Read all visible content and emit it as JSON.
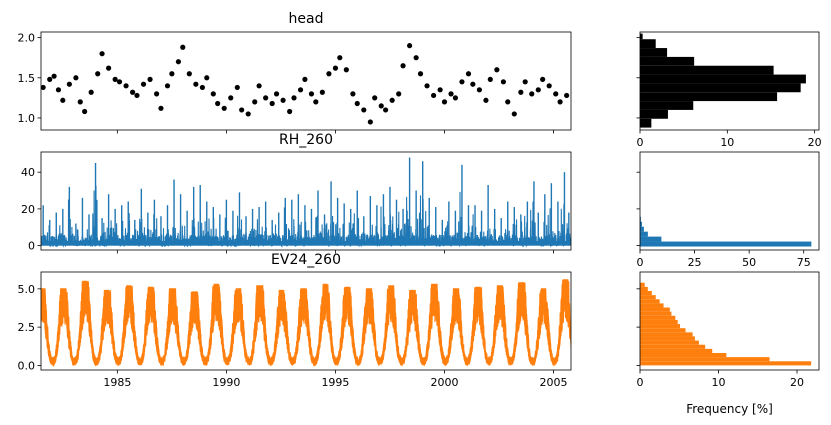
{
  "chart_data": [
    {
      "id": "head",
      "type": "scatter",
      "title": "head",
      "xlabel": "",
      "ylabel": "",
      "xlim": [
        1981.5,
        2005.8
      ],
      "ylim": [
        0.85,
        2.07
      ],
      "yticks": [
        1.0,
        1.5,
        2.0
      ],
      "yticklabels": [
        "1.0",
        "1.5",
        "2.0"
      ],
      "color": "#000000",
      "x": [
        1981.6,
        1981.9,
        1982.1,
        1982.3,
        1982.5,
        1982.8,
        1983.1,
        1983.3,
        1983.5,
        1983.8,
        1984.1,
        1984.3,
        1984.6,
        1984.9,
        1985.1,
        1985.4,
        1985.7,
        1985.9,
        1986.2,
        1986.5,
        1986.8,
        1987.0,
        1987.3,
        1987.5,
        1987.8,
        1988.0,
        1988.3,
        1988.6,
        1988.9,
        1989.1,
        1989.4,
        1989.6,
        1989.9,
        1990.2,
        1990.5,
        1990.7,
        1991.0,
        1991.3,
        1991.5,
        1991.8,
        1992.1,
        1992.3,
        1992.6,
        1992.9,
        1993.1,
        1993.4,
        1993.6,
        1993.9,
        1994.1,
        1994.4,
        1994.7,
        1995.0,
        1995.2,
        1995.5,
        1995.8,
        1996.0,
        1996.3,
        1996.6,
        1996.8,
        1997.1,
        1997.3,
        1997.6,
        1997.9,
        1998.1,
        1998.4,
        1998.7,
        1998.9,
        1999.2,
        1999.5,
        1999.8,
        2000.0,
        2000.3,
        2000.5,
        2000.8,
        2001.1,
        2001.3,
        2001.6,
        2001.9,
        2002.1,
        2002.4,
        2002.7,
        2002.9,
        2003.2,
        2003.5,
        2003.7,
        2004.0,
        2004.3,
        2004.5,
        2004.8,
        2005.1,
        2005.3,
        2005.6
      ],
      "y": [
        1.38,
        1.48,
        1.52,
        1.35,
        1.22,
        1.42,
        1.5,
        1.2,
        1.08,
        1.32,
        1.55,
        1.8,
        1.62,
        1.48,
        1.45,
        1.4,
        1.32,
        1.28,
        1.42,
        1.48,
        1.3,
        1.12,
        1.4,
        1.55,
        1.7,
        1.88,
        1.55,
        1.42,
        1.38,
        1.5,
        1.3,
        1.18,
        1.12,
        1.25,
        1.38,
        1.1,
        1.05,
        1.2,
        1.4,
        1.25,
        1.18,
        1.3,
        1.22,
        1.08,
        1.25,
        1.35,
        1.48,
        1.3,
        1.2,
        1.32,
        1.55,
        1.62,
        1.75,
        1.6,
        1.3,
        1.18,
        1.1,
        0.95,
        1.25,
        1.15,
        1.1,
        1.22,
        1.3,
        1.65,
        1.9,
        1.75,
        1.55,
        1.4,
        1.28,
        1.35,
        1.2,
        1.3,
        1.25,
        1.45,
        1.55,
        1.42,
        1.35,
        1.22,
        1.48,
        1.6,
        1.45,
        1.2,
        1.05,
        1.32,
        1.45,
        1.3,
        1.35,
        1.48,
        1.4,
        1.3,
        1.2,
        1.28
      ]
    },
    {
      "id": "head-hist",
      "type": "bar",
      "orientation": "horizontal",
      "title": "",
      "xlabel": "",
      "ylabel": "",
      "xlim": [
        0,
        20.5
      ],
      "ylim": [
        0.85,
        2.07
      ],
      "xticks": [
        0,
        10,
        20
      ],
      "xticklabels": [
        "0",
        "10",
        "20"
      ],
      "color": "#000000",
      "bin_edges": [
        0.88,
        0.99,
        1.1,
        1.21,
        1.32,
        1.43,
        1.54,
        1.65,
        1.76,
        1.87,
        1.98,
        2.05
      ],
      "values": [
        1.3,
        3.2,
        6.1,
        15.7,
        18.4,
        19.0,
        15.3,
        6.2,
        3.1,
        1.8,
        0.3
      ]
    },
    {
      "id": "RH_260",
      "type": "line",
      "title": "RH_260",
      "xlabel": "",
      "ylabel": "",
      "xlim": [
        1981.5,
        2005.8
      ],
      "ylim": [
        -2.4,
        51
      ],
      "yticks": [
        0,
        20,
        40
      ],
      "yticklabels": [
        "0",
        "20",
        "40"
      ],
      "color": "#1f77b4",
      "x": [
        1981.6,
        1981.9,
        1982.2,
        1982.5,
        1982.8,
        1983.1,
        1983.4,
        1983.7,
        1984.0,
        1984.3,
        1984.6,
        1984.9,
        1985.2,
        1985.5,
        1985.8,
        1986.1,
        1986.4,
        1986.7,
        1987.0,
        1987.3,
        1987.6,
        1987.9,
        1988.2,
        1988.5,
        1988.8,
        1989.1,
        1989.4,
        1989.7,
        1990.0,
        1990.3,
        1990.6,
        1990.9,
        1991.2,
        1991.5,
        1991.8,
        1992.1,
        1992.4,
        1992.7,
        1993.0,
        1993.3,
        1993.6,
        1993.9,
        1994.2,
        1994.5,
        1994.8,
        1995.1,
        1995.4,
        1995.7,
        1996.0,
        1996.3,
        1996.6,
        1996.9,
        1997.2,
        1997.5,
        1997.8,
        1998.1,
        1998.4,
        1998.7,
        1999.0,
        1999.3,
        1999.6,
        1999.9,
        2000.2,
        2000.5,
        2000.8,
        2001.1,
        2001.4,
        2001.7,
        2002.0,
        2002.3,
        2002.6,
        2002.9,
        2003.2,
        2003.5,
        2003.8,
        2004.1,
        2004.3,
        2004.6,
        2004.9,
        2005.2,
        2005.5,
        2005.7
      ],
      "y": [
        22,
        14,
        18,
        20,
        32,
        12,
        26,
        17,
        45,
        15,
        28,
        20,
        22,
        24,
        14,
        31,
        18,
        25,
        16,
        22,
        36,
        28,
        19,
        32,
        33,
        24,
        21,
        17,
        25,
        19,
        29,
        16,
        20,
        21,
        24,
        14,
        18,
        26,
        25,
        28,
        22,
        20,
        30,
        17,
        35,
        26,
        23,
        20,
        30,
        16,
        27,
        22,
        28,
        32,
        25,
        20,
        48,
        30,
        46,
        26,
        21,
        14,
        24,
        19,
        44,
        22,
        22,
        19,
        33,
        20,
        15,
        24,
        21,
        17,
        24,
        35,
        18,
        28,
        34,
        24,
        40,
        18
      ],
      "y_baseline": 2.5
    },
    {
      "id": "RH_260-hist",
      "type": "bar",
      "orientation": "horizontal",
      "title": "",
      "xlabel": "",
      "ylabel": "",
      "xlim": [
        0,
        82
      ],
      "ylim": [
        -2.4,
        51
      ],
      "xticks": [
        0,
        25,
        50,
        75
      ],
      "xticklabels": [
        "0",
        "25",
        "50",
        "75"
      ],
      "color": "#1f77b4",
      "bin_edges": [
        -0.5,
        2.2,
        4.9,
        7.6,
        10.3,
        13.0,
        15.7
      ],
      "values": [
        78.5,
        9.8,
        3.6,
        1.8,
        0.9,
        0.4
      ]
    },
    {
      "id": "EV24_260",
      "type": "area",
      "title": "EV24_260",
      "xlabel": "",
      "ylabel": "",
      "xlim": [
        1981.5,
        2005.8
      ],
      "ylim": [
        -0.3,
        6.1
      ],
      "xticks": [
        1985,
        1990,
        1995,
        2000,
        2005
      ],
      "xticklabels": [
        "1985",
        "1990",
        "1995",
        "2000",
        "2005"
      ],
      "yticks": [
        0.0,
        2.5,
        5.0
      ],
      "yticklabels": [
        "0.0",
        "2.5",
        "5.0"
      ],
      "color": "#ff7f0e",
      "years": [
        1982,
        1983,
        1984,
        1985,
        1986,
        1987,
        1988,
        1989,
        1990,
        1991,
        1992,
        1993,
        1994,
        1995,
        1996,
        1997,
        1998,
        1999,
        2000,
        2001,
        2002,
        2003,
        2004,
        2005
      ],
      "summer_peaks": [
        5.0,
        5.5,
        4.9,
        5.2,
        5.1,
        5.0,
        4.8,
        5.3,
        5.0,
        5.2,
        4.9,
        5.0,
        5.3,
        5.1,
        5.0,
        5.2,
        4.9,
        5.3,
        5.0,
        5.1,
        5.2,
        5.4,
        5.0,
        5.6
      ],
      "winter_level": 0.3
    },
    {
      "id": "EV24_260-hist",
      "type": "bar",
      "orientation": "horizontal",
      "title": "",
      "xlabel": "Frequency [%]",
      "ylabel": "",
      "xlim": [
        0,
        22.8
      ],
      "ylim": [
        -0.3,
        6.1
      ],
      "xticks": [
        0,
        10,
        20
      ],
      "xticklabels": [
        "0",
        "10",
        "20"
      ],
      "color": "#ff7f0e",
      "bin_edges": [
        0.0,
        0.27,
        0.54,
        0.81,
        1.08,
        1.35,
        1.62,
        1.89,
        2.16,
        2.43,
        2.7,
        2.97,
        3.24,
        3.51,
        3.78,
        4.05,
        4.32,
        4.59,
        4.86,
        5.13,
        5.4
      ],
      "values": [
        21.8,
        16.5,
        11.0,
        9.2,
        8.3,
        7.5,
        7.0,
        6.7,
        5.8,
        5.1,
        4.8,
        4.5,
        4.0,
        3.8,
        3.0,
        2.5,
        2.0,
        1.5,
        1.0,
        0.6
      ]
    }
  ]
}
